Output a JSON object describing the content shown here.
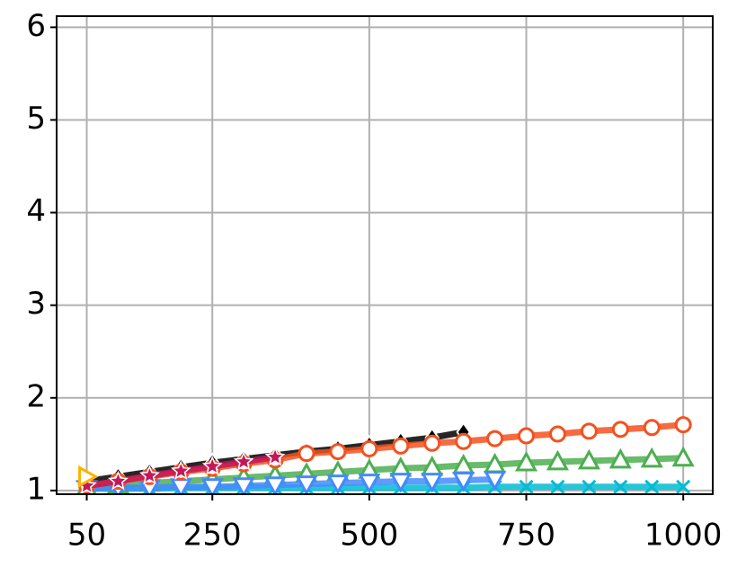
{
  "chart_data": {
    "type": "line",
    "xlim": [
      2,
      1047
    ],
    "ylim": [
      0.96,
      6.12
    ],
    "xticks": [
      50,
      250,
      500,
      750,
      1000
    ],
    "yticks": [
      1,
      2,
      3,
      4,
      5,
      6
    ],
    "grid": true,
    "series": [
      {
        "color": "#000000",
        "marker": "D",
        "x": [
          50,
          100,
          150,
          200,
          250,
          300,
          350,
          400,
          450,
          500,
          550,
          600,
          650
        ],
        "values": [
          1.1,
          1.15,
          1.2,
          1.25,
          1.3,
          1.34,
          1.38,
          1.42,
          1.45,
          1.49,
          1.53,
          1.57,
          1.63
        ]
      },
      {
        "color": "#00bcd4",
        "marker": "x",
        "x": [
          50,
          100,
          150,
          200,
          250,
          300,
          350,
          400,
          450,
          500,
          550,
          600,
          650,
          700,
          750,
          800,
          850,
          900,
          950,
          1000
        ],
        "values": [
          1.02,
          1.02,
          1.02,
          1.03,
          1.03,
          1.03,
          1.03,
          1.03,
          1.03,
          1.03,
          1.03,
          1.03,
          1.03,
          1.04,
          1.04,
          1.04,
          1.04,
          1.04,
          1.04,
          1.04
        ]
      },
      {
        "color": "#4caf50",
        "marker": "^",
        "x": [
          50,
          100,
          150,
          200,
          250,
          300,
          350,
          400,
          450,
          500,
          550,
          600,
          650,
          700,
          750,
          800,
          850,
          900,
          950,
          1000
        ],
        "values": [
          1.03,
          1.06,
          1.08,
          1.1,
          1.12,
          1.14,
          1.16,
          1.18,
          1.2,
          1.22,
          1.24,
          1.25,
          1.27,
          1.28,
          1.3,
          1.31,
          1.32,
          1.33,
          1.34,
          1.35
        ]
      },
      {
        "color": "#448aff",
        "marker": "v",
        "x": [
          50,
          100,
          150,
          200,
          250,
          300,
          350,
          400,
          450,
          500,
          550,
          600,
          650,
          700
        ],
        "values": [
          1.02,
          1.03,
          1.03,
          1.04,
          1.04,
          1.05,
          1.06,
          1.07,
          1.08,
          1.09,
          1.1,
          1.1,
          1.11,
          1.12
        ]
      },
      {
        "color": "#f4511e",
        "marker": "o",
        "x": [
          50,
          100,
          150,
          200,
          250,
          300,
          350,
          400,
          450,
          500,
          550,
          600,
          650,
          700,
          750,
          800,
          850,
          900,
          950,
          1000
        ],
        "values": [
          1.05,
          1.1,
          1.15,
          1.2,
          1.24,
          1.29,
          1.33,
          1.4,
          1.42,
          1.45,
          1.48,
          1.51,
          1.53,
          1.56,
          1.59,
          1.61,
          1.64,
          1.66,
          1.68,
          1.71
        ]
      },
      {
        "color": "#c2185b",
        "marker": "*",
        "x": [
          50,
          100,
          150,
          200,
          250,
          300,
          350
        ],
        "values": [
          1.05,
          1.1,
          1.16,
          1.21,
          1.26,
          1.31,
          1.36
        ]
      },
      {
        "color": "#ffb300",
        "marker": ">",
        "x": [
          50
        ],
        "values": [
          1.15
        ]
      }
    ]
  }
}
